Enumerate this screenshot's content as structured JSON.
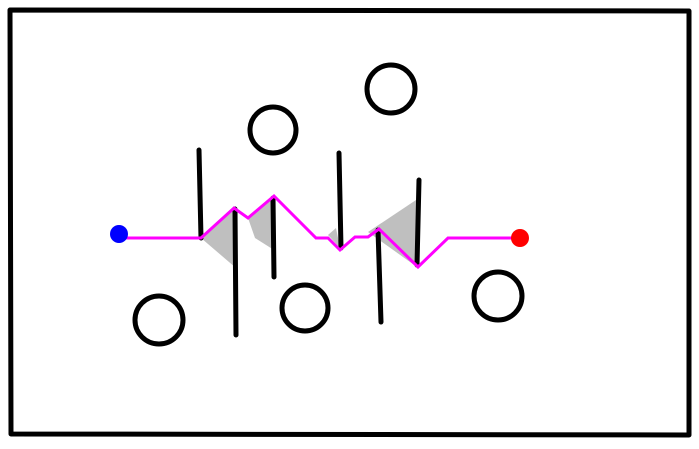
{
  "scene": {
    "colors": {
      "background": "#ffffff",
      "border": "#000000",
      "obstacle": "#000000",
      "path": "#ff00ff",
      "start": "#0000ff",
      "goal": "#ff0000",
      "shadow": "#bfbfbf"
    },
    "markers": {
      "start": "blue-dot",
      "goal": "red-dot"
    },
    "obstacle_types": [
      "vertical-wall",
      "circle"
    ],
    "path_style": "polyline"
  }
}
